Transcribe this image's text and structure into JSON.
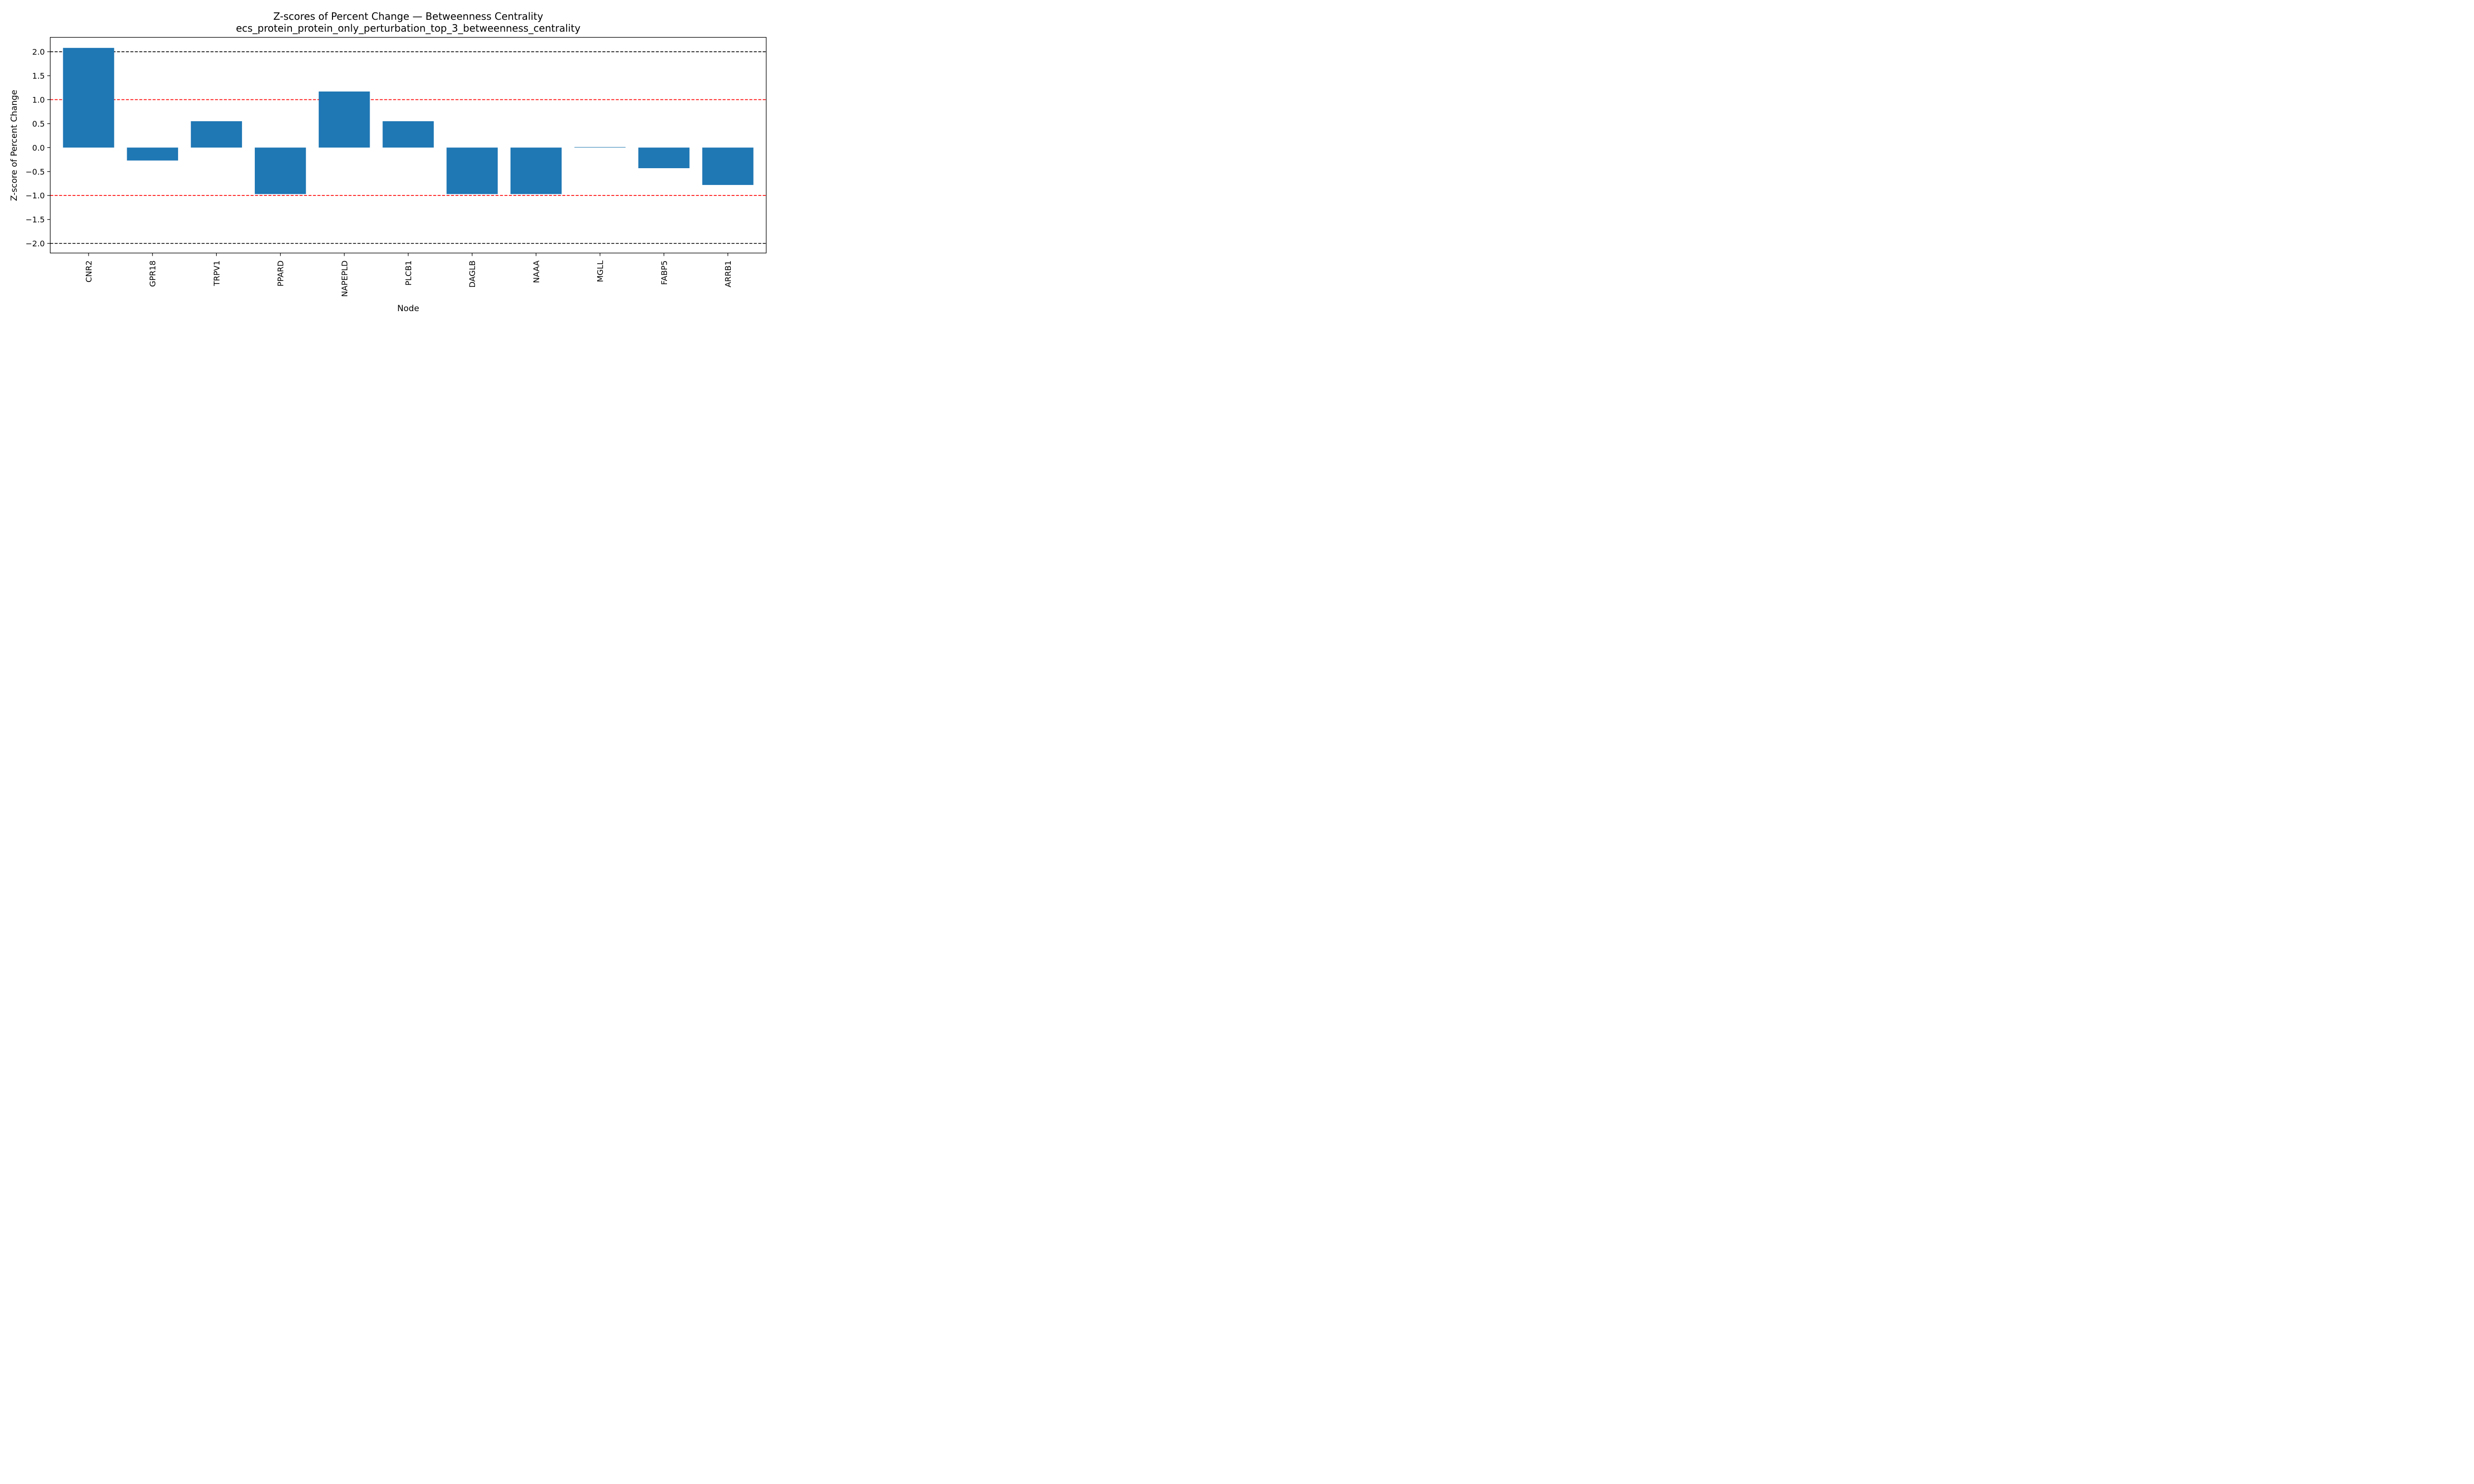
{
  "chart_data": {
    "type": "bar",
    "title": "Z-scores of Percent Change — Betweenness Centrality",
    "subtitle": "ecs_protein_protein_only_perturbation_top_3_betweenness_centrality",
    "xlabel": "Node",
    "ylabel": "Z-score of Percent Change",
    "categories": [
      "CNR2",
      "GPR18",
      "TRPV1",
      "PPARD",
      "NAPEPLD",
      "PLCB1",
      "DAGLB",
      "NAAA",
      "MGLL",
      "FABP5",
      "ARRB1"
    ],
    "values": [
      2.08,
      -0.27,
      0.55,
      -0.97,
      1.17,
      0.55,
      -0.97,
      -0.97,
      0.01,
      -0.43,
      -0.78
    ],
    "ylim": [
      -2.2,
      2.3
    ],
    "yticks": [
      2.0,
      1.5,
      1.0,
      0.5,
      0.0,
      -0.5,
      -1.0,
      -1.5,
      -2.0
    ],
    "ytick_labels": [
      "2.0",
      "1.5",
      "1.0",
      "0.5",
      "0.0",
      "−0.5",
      "−1.0",
      "−1.5",
      "−2.0"
    ],
    "reference_lines": [
      {
        "y": 2.0,
        "color": "#000000",
        "style": "dashed"
      },
      {
        "y": 1.0,
        "color": "#ff0000",
        "style": "dashed"
      },
      {
        "y": -1.0,
        "color": "#ff0000",
        "style": "dashed"
      },
      {
        "y": -2.0,
        "color": "#000000",
        "style": "dashed"
      }
    ],
    "bar_color": "#1f77b4",
    "grid": false,
    "legend": "none"
  }
}
